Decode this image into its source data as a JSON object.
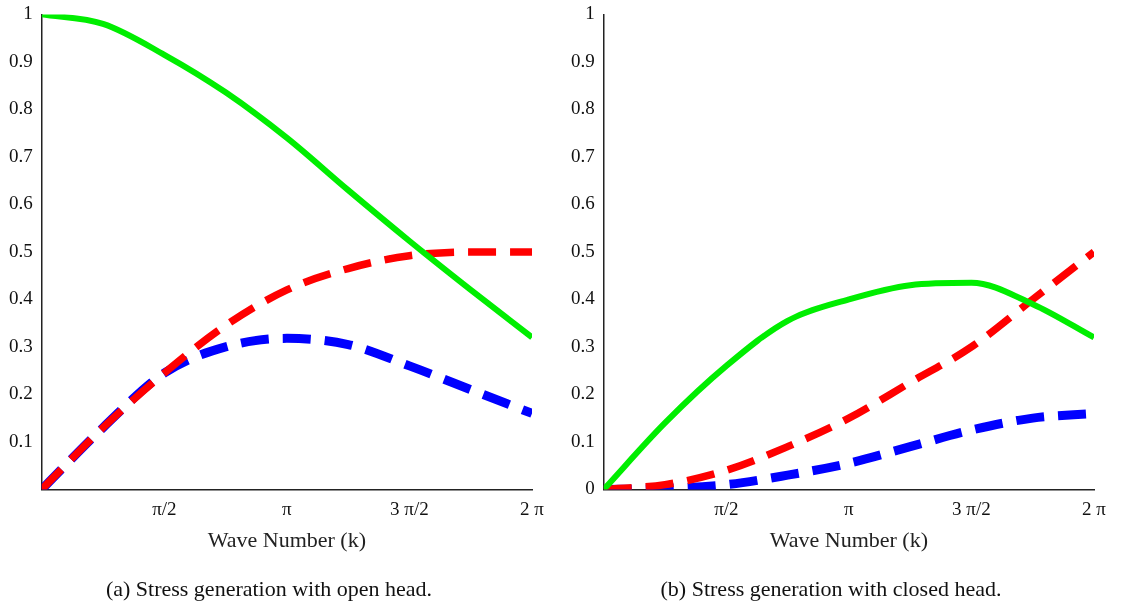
{
  "chart_data": [
    {
      "type": "line",
      "title": "(a) Stress generation with open head.",
      "xlabel": "Wave Number (k)",
      "x": [
        0,
        0.785,
        1.571,
        2.356,
        3.142,
        3.927,
        4.712,
        5.498,
        6.283
      ],
      "xlim": [
        0,
        6.283
      ],
      "xticks": [
        {
          "value": 1.571,
          "label": "π/2"
        },
        {
          "value": 3.142,
          "label": "π"
        },
        {
          "value": 4.712,
          "label": "3 π/2"
        },
        {
          "value": 6.283,
          "label": "2 π"
        }
      ],
      "ylim": [
        0,
        1
      ],
      "yticks": [
        0.1,
        0.2,
        0.3,
        0.4,
        0.5,
        0.6,
        0.7,
        0.8,
        0.9,
        1
      ],
      "grid": false,
      "legend": false,
      "marker": "none",
      "series": [
        {
          "color": "#00ee00",
          "line_style": "solid",
          "values": [
            1,
            0.98,
            0.915,
            0.836,
            0.74,
            0.63,
            0.523,
            0.42,
            0.32
          ]
        },
        {
          "color": "#ff0000",
          "line_style": "dashed",
          "values": [
            0,
            0.13,
            0.245,
            0.345,
            0.42,
            0.465,
            0.492,
            0.5,
            0.5
          ]
        },
        {
          "color": "#0000ff",
          "line_style": "dashed",
          "values": [
            0,
            0.13,
            0.245,
            0.3,
            0.318,
            0.305,
            0.26,
            0.21,
            0.16
          ]
        }
      ]
    },
    {
      "type": "line",
      "title": "(b) Stress generation with closed head.",
      "xlabel": "Wave Number (k)",
      "x": [
        0,
        0.785,
        1.571,
        2.356,
        3.142,
        3.927,
        4.712,
        5.498,
        6.283
      ],
      "xlim": [
        0,
        6.283
      ],
      "xticks": [
        {
          "value": 1.571,
          "label": "π/2"
        },
        {
          "value": 3.142,
          "label": "π"
        },
        {
          "value": 4.712,
          "label": "3 π/2"
        },
        {
          "value": 6.283,
          "label": "2 π"
        }
      ],
      "ylim": [
        0,
        1
      ],
      "yticks": [
        0,
        0.1,
        0.2,
        0.3,
        0.4,
        0.5,
        0.6,
        0.7,
        0.8,
        0.9,
        1
      ],
      "grid": false,
      "legend": false,
      "marker": "none",
      "series": [
        {
          "color": "#00ee00",
          "line_style": "solid",
          "values": [
            0,
            0.14,
            0.26,
            0.355,
            0.4,
            0.43,
            0.435,
            0.39,
            0.32
          ]
        },
        {
          "color": "#ff0000",
          "line_style": "dashed",
          "values": [
            0,
            0.01,
            0.04,
            0.09,
            0.15,
            0.225,
            0.3,
            0.4,
            0.5
          ]
        },
        {
          "color": "#0000ff",
          "line_style": "dashed",
          "values": [
            0,
            0.002,
            0.01,
            0.03,
            0.055,
            0.09,
            0.125,
            0.15,
            0.16
          ]
        }
      ]
    }
  ]
}
